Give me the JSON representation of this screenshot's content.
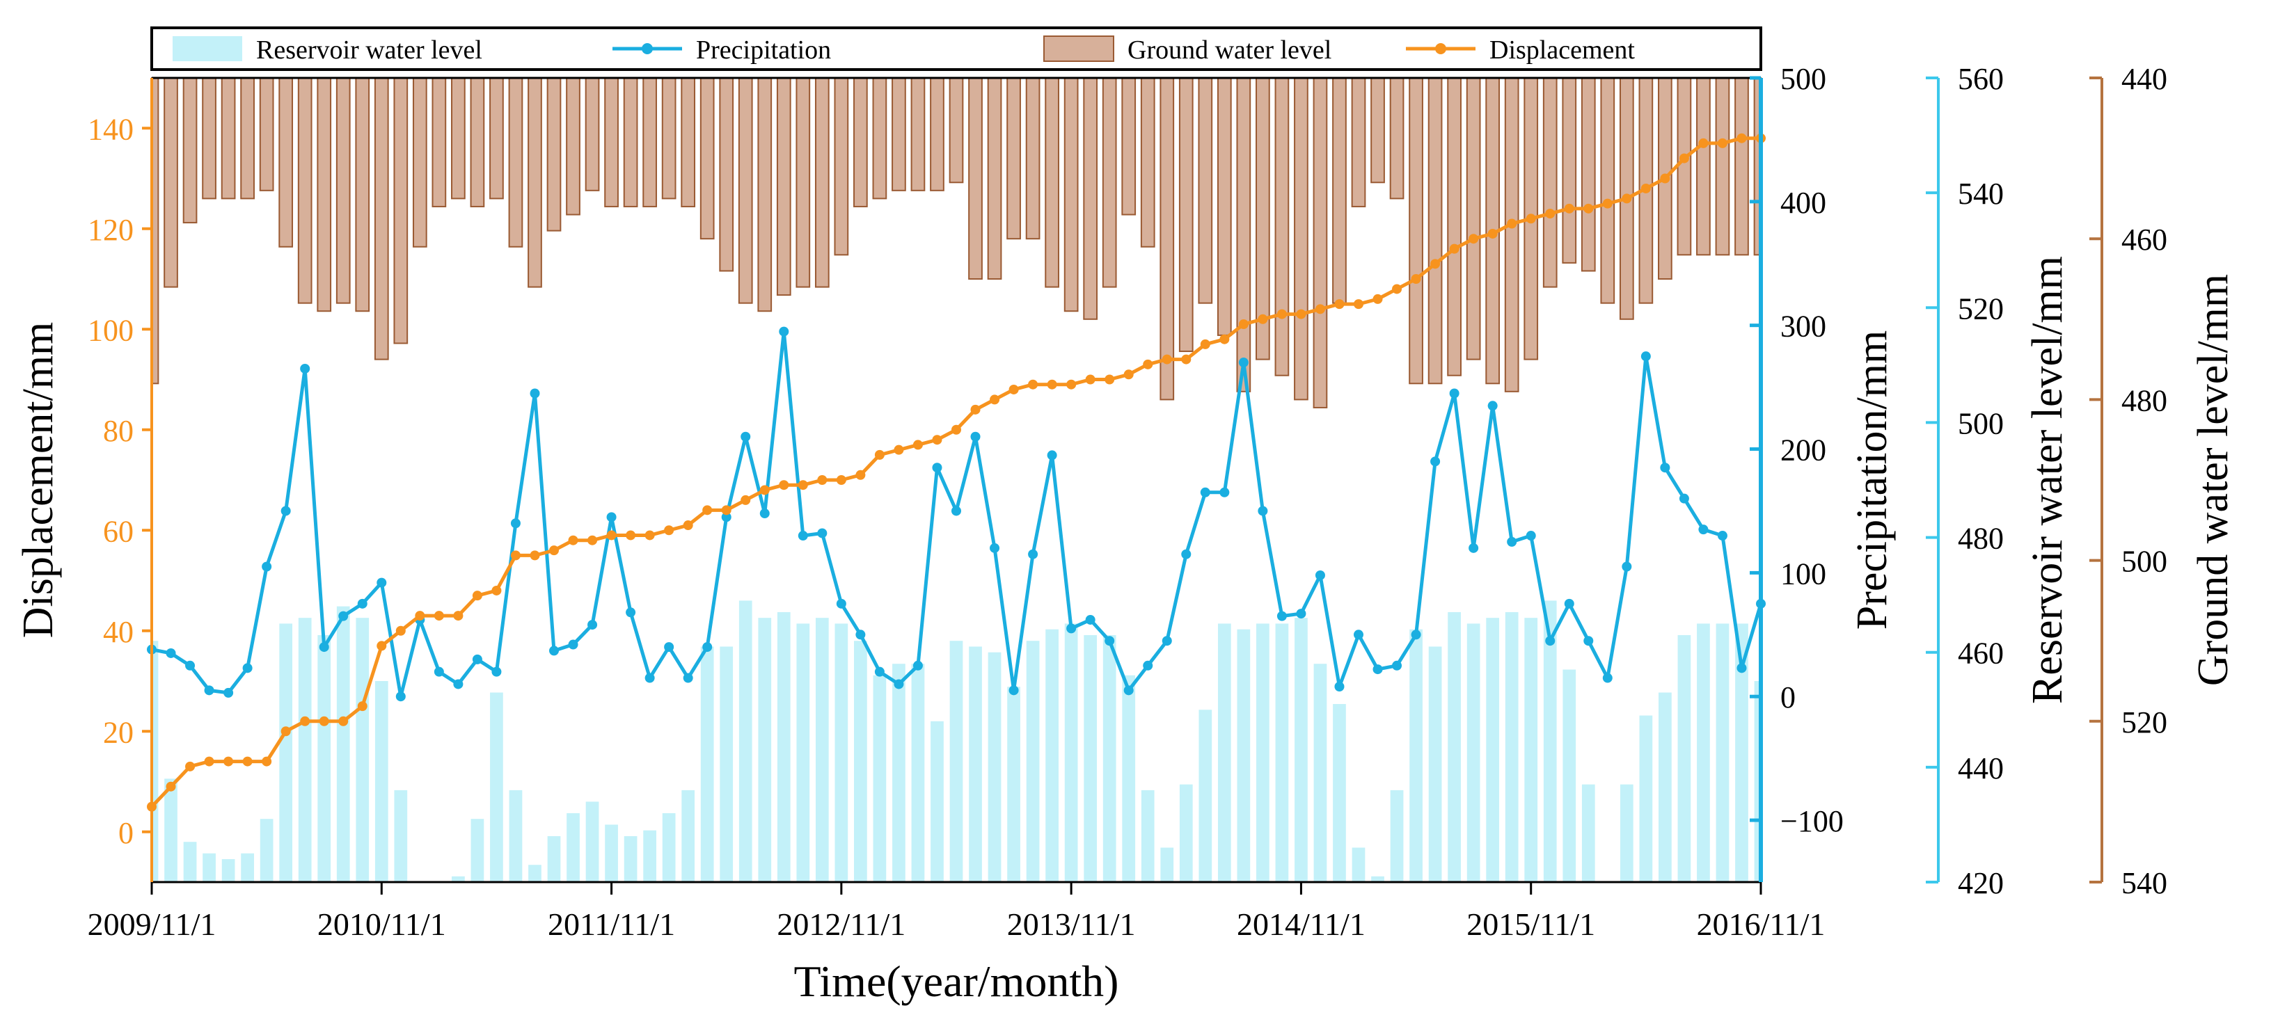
{
  "chart_data": {
    "type": "bar",
    "xlabel": "Time(year/month)",
    "x_tick_labels": [
      "2009/11/1",
      "2010/11/1",
      "2011/11/1",
      "2012/11/1",
      "2013/11/1",
      "2014/11/1",
      "2015/11/1",
      "2016/11/1"
    ],
    "x_range": [
      "2009/11/1",
      "2016/11/1"
    ],
    "months": 85,
    "axes": {
      "displacement": {
        "label": "Displacement/mm",
        "range": [
          -10,
          150
        ],
        "ticks": [
          0,
          20,
          40,
          60,
          80,
          100,
          120,
          140
        ],
        "color": "#f7931e",
        "side": "left"
      },
      "precipitation": {
        "label": "Precipitation/mm",
        "range": [
          -150,
          500
        ],
        "ticks": [
          -100,
          0,
          100,
          200,
          300,
          400,
          500
        ],
        "tick_labels": [
          "−100",
          "0",
          "100",
          "200",
          "300",
          "400",
          "500"
        ],
        "color": "#1aaee0",
        "side": "right"
      },
      "reservoir": {
        "label": "Reservoir water level/mm",
        "range": [
          420,
          560
        ],
        "ticks": [
          420,
          440,
          460,
          480,
          500,
          520,
          540,
          560
        ],
        "color": "#3cc8ec",
        "side": "right"
      },
      "groundwater": {
        "label": "Ground water level/mm",
        "range": [
          440,
          540
        ],
        "inverted": true,
        "ticks": [
          440,
          460,
          480,
          500,
          520,
          540
        ],
        "color": "#b5733f",
        "side": "right"
      }
    },
    "legend": {
      "placement": "top",
      "entries": [
        {
          "name": "Reservoir water level",
          "kind": "bar",
          "color": "#c3f1f9"
        },
        {
          "name": "Precipitation",
          "kind": "line",
          "color": "#1aaee0"
        },
        {
          "name": "Ground water level",
          "kind": "bar",
          "color": "#d7b09a"
        },
        {
          "name": "Displacement",
          "kind": "line",
          "color": "#f7931e"
        }
      ]
    },
    "series": [
      {
        "name": "Reservoir water level",
        "axis": "reservoir",
        "type": "bar",
        "color": "#c3f1f9",
        "values": [
          462,
          438,
          427,
          425,
          424,
          425,
          431,
          465,
          466,
          463,
          468,
          466,
          455,
          436,
          420,
          418,
          421,
          431,
          453,
          436,
          423,
          428,
          432,
          434,
          430,
          428,
          429,
          432,
          436,
          461,
          461,
          469,
          466,
          467,
          465,
          466,
          465,
          462,
          456,
          458,
          458,
          448,
          462,
          461,
          460,
          454,
          462,
          464,
          465,
          463,
          463,
          456,
          436,
          426,
          437,
          450,
          465,
          464,
          465,
          465,
          466,
          458,
          451,
          426,
          421,
          436,
          464,
          461,
          467,
          465,
          466,
          467,
          466,
          469,
          457,
          437,
          419,
          437,
          449,
          453,
          463,
          465,
          465,
          465,
          455
        ]
      },
      {
        "name": "Precipitation",
        "axis": "precipitation",
        "type": "line",
        "color": "#1aaee0",
        "values": [
          38,
          35,
          25,
          5,
          3,
          23,
          105,
          150,
          265,
          40,
          65,
          75,
          92,
          0,
          62,
          20,
          10,
          30,
          20,
          140,
          245,
          37,
          42,
          58,
          145,
          68,
          15,
          40,
          15,
          40,
          145,
          210,
          148,
          295,
          130,
          132,
          75,
          50,
          20,
          10,
          25,
          185,
          150,
          210,
          120,
          5,
          115,
          195,
          55,
          62,
          45,
          5,
          25,
          45,
          115,
          165,
          165,
          270,
          150,
          65,
          67,
          98,
          8,
          50,
          22,
          25,
          50,
          190,
          245,
          120,
          235,
          125,
          130,
          45,
          75,
          45,
          15,
          105,
          275,
          185,
          160,
          135,
          130,
          23,
          75
        ]
      },
      {
        "name": "Ground water level",
        "axis": "groundwater",
        "type": "bar",
        "color": "#d7b09a",
        "values": [
          478,
          466,
          458,
          455,
          455,
          455,
          454,
          461,
          468,
          469,
          468,
          469,
          475,
          473,
          461,
          456,
          455,
          456,
          455,
          461,
          466,
          459,
          457,
          454,
          456,
          456,
          456,
          455,
          456,
          460,
          464,
          468,
          469,
          467,
          466,
          466,
          462,
          456,
          455,
          454,
          454,
          454,
          453,
          465,
          465,
          460,
          460,
          466,
          469,
          470,
          466,
          457,
          461,
          480,
          474,
          468,
          472,
          479,
          475,
          477,
          480,
          481,
          468,
          456,
          453,
          455,
          478,
          478,
          477,
          475,
          478,
          479,
          475,
          466,
          463,
          464,
          468,
          470,
          468,
          465,
          462,
          462,
          462,
          462,
          462
        ]
      },
      {
        "name": "Displacement",
        "axis": "displacement",
        "type": "line",
        "color": "#f7931e",
        "values": [
          5,
          9,
          13,
          14,
          14,
          14,
          14,
          20,
          22,
          22,
          22,
          25,
          37,
          40,
          43,
          43,
          43,
          47,
          48,
          55,
          55,
          56,
          58,
          58,
          59,
          59,
          59,
          60,
          61,
          64,
          64,
          66,
          68,
          69,
          69,
          70,
          70,
          71,
          75,
          76,
          77,
          78,
          80,
          84,
          86,
          88,
          89,
          89,
          89,
          90,
          90,
          91,
          93,
          94,
          94,
          97,
          98,
          101,
          102,
          103,
          103,
          104,
          105,
          105,
          106,
          108,
          110,
          113,
          116,
          118,
          119,
          121,
          122,
          123,
          124,
          124,
          125,
          126,
          128,
          130,
          134,
          137,
          137,
          138,
          138
        ]
      }
    ]
  }
}
